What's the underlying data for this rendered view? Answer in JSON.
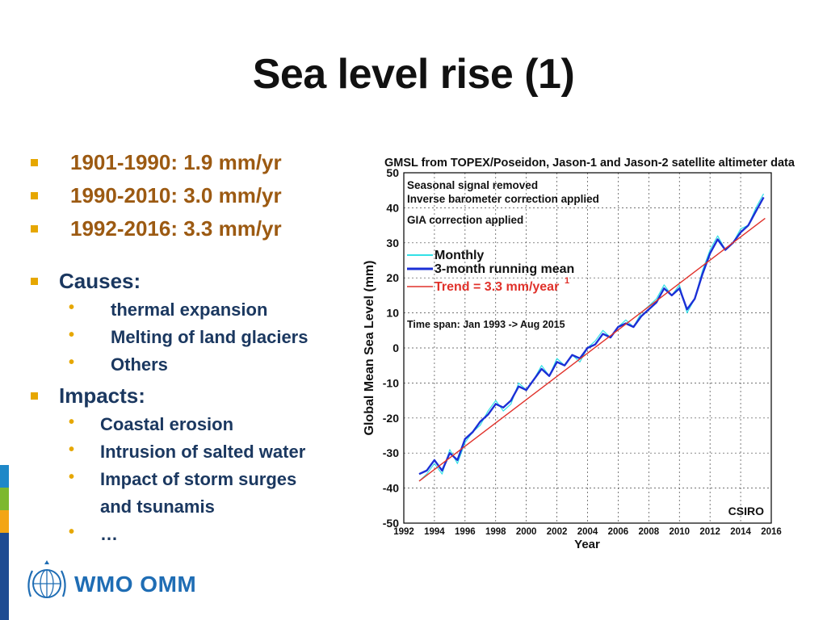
{
  "slide": {
    "title": "Sea level rise (1)",
    "rates": [
      "1901-1990: 1.9 mm/yr",
      "1990-2010: 3.0 mm/yr",
      "1992-2016: 3.3 mm/yr"
    ],
    "causes": {
      "heading": "Causes:",
      "items": [
        "thermal expansion",
        "Melting of land glaciers",
        "Others"
      ]
    },
    "impacts": {
      "heading": "Impacts:",
      "items": [
        "Coastal erosion",
        "Intrusion of salted water",
        "Impact of storm surges",
        "and tsunamis",
        "…"
      ]
    },
    "logo_text": "WMO OMM",
    "colors": {
      "title": "#111111",
      "rates": "#9C5A12",
      "body": "#1B3860",
      "bullet": "#E6A700",
      "brand": "#1F6DB4"
    }
  },
  "chart_data": {
    "type": "line",
    "title": "GMSL from TOPEX/Poseidon, Jason-1 and Jason-2 satellite altimeter data",
    "xlabel": "Year",
    "ylabel": "Global Mean Sea Level (mm)",
    "xlim": [
      1992,
      2016
    ],
    "ylim": [
      -50,
      50
    ],
    "xticks": [
      "1992",
      "1994",
      "1996",
      "1998",
      "2000",
      "2002",
      "2004",
      "2006",
      "2008",
      "2010",
      "2012",
      "2014",
      "2016"
    ],
    "yticks": [
      "50",
      "40",
      "30",
      "20",
      "10",
      "0",
      "-10",
      "-20",
      "-30",
      "-40",
      "-50"
    ],
    "annotations": [
      "Seasonal signal removed",
      "Inverse barometer correction applied",
      "GIA correction applied",
      "Time span: Jan 1993 -> Aug 2015"
    ],
    "watermark": "CSIRO",
    "series": [
      {
        "name": "Monthly",
        "color": "#33E0E6",
        "x": [
          1993.0,
          1993.5,
          1994.0,
          1994.5,
          1995.0,
          1995.5,
          1996.0,
          1996.5,
          1997.0,
          1997.5,
          1998.0,
          1998.5,
          1999.0,
          1999.5,
          2000.0,
          2000.5,
          2001.0,
          2001.5,
          2002.0,
          2002.5,
          2003.0,
          2003.5,
          2004.0,
          2004.5,
          2005.0,
          2005.5,
          2006.0,
          2006.5,
          2007.0,
          2007.5,
          2008.0,
          2008.5,
          2009.0,
          2009.5,
          2010.0,
          2010.5,
          2011.0,
          2011.5,
          2012.0,
          2012.5,
          2013.0,
          2013.5,
          2014.0,
          2014.5,
          2015.0,
          2015.5
        ],
        "y": [
          -38,
          -36,
          -33,
          -36,
          -29,
          -33,
          -27,
          -24,
          -22,
          -18,
          -15,
          -18,
          -16,
          -10,
          -12,
          -9,
          -5,
          -8,
          -3,
          -5,
          -2,
          -4,
          0,
          2,
          5,
          3,
          6,
          8,
          6,
          10,
          12,
          14,
          18,
          15,
          18,
          10,
          14,
          22,
          28,
          32,
          28,
          30,
          34,
          35,
          40,
          44
        ]
      },
      {
        "name": "3-month running mean",
        "color": "#1B2FD6",
        "x": [
          1993.0,
          1993.5,
          1994.0,
          1994.5,
          1995.0,
          1995.5,
          1996.0,
          1996.5,
          1997.0,
          1997.5,
          1998.0,
          1998.5,
          1999.0,
          1999.5,
          2000.0,
          2000.5,
          2001.0,
          2001.5,
          2002.0,
          2002.5,
          2003.0,
          2003.5,
          2004.0,
          2004.5,
          2005.0,
          2005.5,
          2006.0,
          2006.5,
          2007.0,
          2007.5,
          2008.0,
          2008.5,
          2009.0,
          2009.5,
          2010.0,
          2010.5,
          2011.0,
          2011.5,
          2012.0,
          2012.5,
          2013.0,
          2013.5,
          2014.0,
          2014.5,
          2015.0,
          2015.5
        ],
        "y": [
          -36,
          -35,
          -32,
          -35,
          -30,
          -32,
          -26,
          -24,
          -21,
          -19,
          -16,
          -17,
          -15,
          -11,
          -12,
          -9,
          -6,
          -8,
          -4,
          -5,
          -2,
          -3,
          0,
          1,
          4,
          3,
          6,
          7,
          6,
          9,
          11,
          13,
          17,
          15,
          17,
          11,
          14,
          21,
          27,
          31,
          28,
          30,
          33,
          35,
          39,
          43
        ]
      },
      {
        "name": "Trend = 3.3 mm/year",
        "superscript": "1",
        "color": "#E0312A",
        "x": [
          1993,
          2015.6
        ],
        "y": [
          -38,
          37
        ]
      }
    ]
  }
}
